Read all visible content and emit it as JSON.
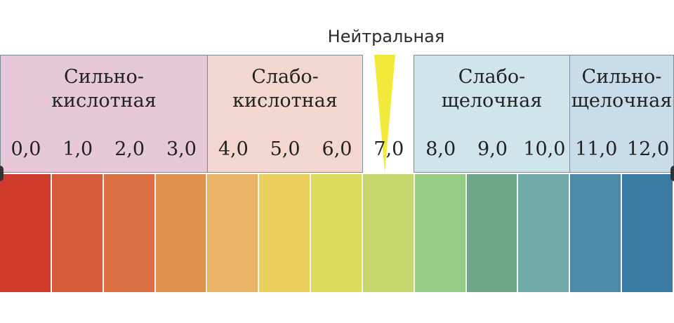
{
  "neutral_label": "Нейтральная",
  "zones": [
    {
      "line1": "Сильно-",
      "line2": "кислотная",
      "bg": "#e7c8d8"
    },
    {
      "line1": "Слабо-",
      "line2": "кислотная",
      "bg": "#f3d6cf"
    },
    {
      "line1": "Слабо-",
      "line2": "щелочная",
      "bg": "#cfe5ea"
    },
    {
      "line1": "Сильно-",
      "line2": "щелочная",
      "bg": "#c9dcea"
    }
  ],
  "ticks": [
    "0,0",
    "1,0",
    "2,0",
    "3,0",
    "4,0",
    "5,0",
    "6,0",
    "7,0",
    "8,0",
    "9,0",
    "10,0",
    "11,0",
    "12,0"
  ],
  "colors": [
    "#cf3a2c",
    "#d75a3a",
    "#dd7044",
    "#e0934f",
    "#eab466",
    "#ebcf5f",
    "#dddb5c",
    "#c5d76c",
    "#94cc86",
    "#6ea68c",
    "#6faaa8",
    "#4b8aa8",
    "#3a7aa2"
  ],
  "neutral_marker_color": "#f2ea3a"
}
